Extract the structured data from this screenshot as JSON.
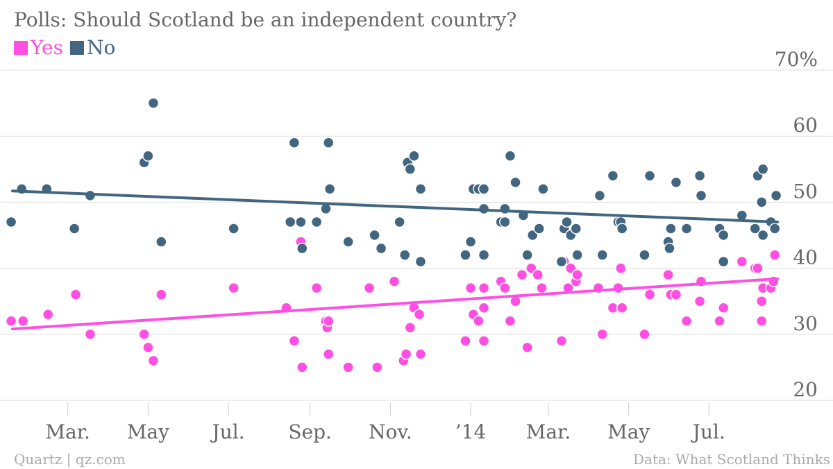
{
  "chart_data": {
    "type": "scatter",
    "title": "Polls: Should Scotland be an independent country?",
    "y_unit_label": "70%",
    "ylim": [
      20,
      70
    ],
    "y_ticks": [
      20,
      30,
      40,
      50,
      60
    ],
    "x_range": [
      "2013-01-18",
      "2014-08-22"
    ],
    "x_ticks": [
      {
        "date": "2013-03-01",
        "label": "Mar."
      },
      {
        "date": "2013-05-01",
        "label": "May"
      },
      {
        "date": "2013-07-01",
        "label": "Jul."
      },
      {
        "date": "2013-09-01",
        "label": "Sep."
      },
      {
        "date": "2013-11-01",
        "label": "Nov."
      },
      {
        "date": "2014-01-01",
        "label": "’14"
      },
      {
        "date": "2014-03-01",
        "label": "Mar."
      },
      {
        "date": "2014-05-01",
        "label": "May"
      },
      {
        "date": "2014-07-01",
        "label": "Jul."
      }
    ],
    "grid": true,
    "legend_position": "top-left",
    "series": [
      {
        "name": "Yes",
        "color": "#ff4fe3",
        "trend": [
          [
            "2013-01-18",
            30.8
          ],
          [
            "2014-08-22",
            38.4
          ]
        ],
        "points": [
          [
            "2013-01-17",
            32
          ],
          [
            "2013-01-26",
            32
          ],
          [
            "2013-02-14",
            33
          ],
          [
            "2013-03-07",
            36
          ],
          [
            "2013-03-18",
            30
          ],
          [
            "2013-04-28",
            30
          ],
          [
            "2013-05-01",
            28
          ],
          [
            "2013-05-05",
            26
          ],
          [
            "2013-05-11",
            36
          ],
          [
            "2013-07-05",
            37
          ],
          [
            "2013-08-14",
            34
          ],
          [
            "2013-08-20",
            29
          ],
          [
            "2013-08-26",
            25
          ],
          [
            "2013-08-25",
            44
          ],
          [
            "2013-09-06",
            37
          ],
          [
            "2013-09-13",
            32
          ],
          [
            "2013-09-14",
            31
          ],
          [
            "2013-09-15",
            32
          ],
          [
            "2013-09-15",
            27
          ],
          [
            "2013-09-30",
            25
          ],
          [
            "2013-10-16",
            37
          ],
          [
            "2013-10-22",
            25
          ],
          [
            "2013-11-04",
            38
          ],
          [
            "2013-11-11",
            26
          ],
          [
            "2013-11-13",
            27
          ],
          [
            "2013-11-16",
            31
          ],
          [
            "2013-11-19",
            34
          ],
          [
            "2013-11-23",
            33
          ],
          [
            "2013-11-24",
            27
          ],
          [
            "2013-12-28",
            29
          ],
          [
            "2014-01-01",
            37
          ],
          [
            "2014-01-03",
            33
          ],
          [
            "2014-01-07",
            32
          ],
          [
            "2014-01-11",
            34
          ],
          [
            "2014-01-11",
            29
          ],
          [
            "2014-01-11",
            37
          ],
          [
            "2014-01-24",
            38
          ],
          [
            "2014-01-27",
            37
          ],
          [
            "2014-01-31",
            32
          ],
          [
            "2014-02-04",
            35
          ],
          [
            "2014-02-09",
            39
          ],
          [
            "2014-02-13",
            28
          ],
          [
            "2014-02-16",
            40
          ],
          [
            "2014-02-21",
            39
          ],
          [
            "2014-02-24",
            37
          ],
          [
            "2014-03-11",
            29
          ],
          [
            "2014-03-13",
            41
          ],
          [
            "2014-03-16",
            37
          ],
          [
            "2014-03-18",
            40
          ],
          [
            "2014-03-22",
            38
          ],
          [
            "2014-03-23",
            39
          ],
          [
            "2014-04-08",
            37
          ],
          [
            "2014-04-11",
            30
          ],
          [
            "2014-04-19",
            34
          ],
          [
            "2014-04-23",
            37
          ],
          [
            "2014-04-25",
            40
          ],
          [
            "2014-04-26",
            34
          ],
          [
            "2014-05-13",
            30
          ],
          [
            "2014-05-17",
            36
          ],
          [
            "2014-05-31",
            39
          ],
          [
            "2014-06-02",
            36
          ],
          [
            "2014-06-06",
            36
          ],
          [
            "2014-06-14",
            32
          ],
          [
            "2014-06-25",
            38
          ],
          [
            "2014-06-24",
            35
          ],
          [
            "2014-07-09",
            32
          ],
          [
            "2014-07-12",
            34
          ],
          [
            "2014-07-26",
            41
          ],
          [
            "2014-08-05",
            40
          ],
          [
            "2014-08-07",
            40
          ],
          [
            "2014-08-11",
            37
          ],
          [
            "2014-08-10",
            35
          ],
          [
            "2014-08-10",
            32
          ],
          [
            "2014-08-17",
            37
          ],
          [
            "2014-08-19",
            38
          ],
          [
            "2014-08-20",
            42
          ]
        ]
      },
      {
        "name": "No",
        "color": "#426580",
        "trend": [
          [
            "2013-01-18",
            51.7
          ],
          [
            "2014-08-22",
            47.0
          ]
        ],
        "points": [
          [
            "2013-01-17",
            47
          ],
          [
            "2013-01-25",
            52
          ],
          [
            "2013-02-13",
            52
          ],
          [
            "2013-03-06",
            46
          ],
          [
            "2013-03-18",
            51
          ],
          [
            "2013-04-28",
            56
          ],
          [
            "2013-05-01",
            57
          ],
          [
            "2013-05-05",
            65
          ],
          [
            "2013-05-11",
            44
          ],
          [
            "2013-07-05",
            46
          ],
          [
            "2013-08-17",
            47
          ],
          [
            "2013-08-20",
            59
          ],
          [
            "2013-08-25",
            47
          ],
          [
            "2013-08-26",
            43
          ],
          [
            "2013-09-06",
            47
          ],
          [
            "2013-09-13",
            49
          ],
          [
            "2013-09-15",
            59
          ],
          [
            "2013-09-16",
            52
          ],
          [
            "2013-09-30",
            44
          ],
          [
            "2013-10-20",
            45
          ],
          [
            "2013-10-25",
            43
          ],
          [
            "2013-11-08",
            47
          ],
          [
            "2013-11-12",
            42
          ],
          [
            "2013-11-14",
            56
          ],
          [
            "2013-11-16",
            55
          ],
          [
            "2013-11-19",
            57
          ],
          [
            "2013-11-24",
            52
          ],
          [
            "2013-11-24",
            41
          ],
          [
            "2013-12-28",
            42
          ],
          [
            "2014-01-01",
            44
          ],
          [
            "2014-01-03",
            52
          ],
          [
            "2014-01-07",
            52
          ],
          [
            "2014-01-11",
            52
          ],
          [
            "2014-01-11",
            49
          ],
          [
            "2014-01-11",
            42
          ],
          [
            "2014-01-24",
            47
          ],
          [
            "2014-01-27",
            47
          ],
          [
            "2014-01-27",
            49
          ],
          [
            "2014-01-31",
            57
          ],
          [
            "2014-02-04",
            53
          ],
          [
            "2014-02-10",
            48
          ],
          [
            "2014-02-13",
            42
          ],
          [
            "2014-02-17",
            45
          ],
          [
            "2014-02-22",
            46
          ],
          [
            "2014-02-25",
            52
          ],
          [
            "2014-03-11",
            41
          ],
          [
            "2014-03-13",
            46
          ],
          [
            "2014-03-15",
            47
          ],
          [
            "2014-03-18",
            45
          ],
          [
            "2014-03-22",
            46
          ],
          [
            "2014-03-23",
            42
          ],
          [
            "2014-04-09",
            51
          ],
          [
            "2014-04-11",
            42
          ],
          [
            "2014-04-19",
            54
          ],
          [
            "2014-04-23",
            47
          ],
          [
            "2014-04-25",
            47
          ],
          [
            "2014-04-26",
            46
          ],
          [
            "2014-05-13",
            42
          ],
          [
            "2014-05-17",
            54
          ],
          [
            "2014-05-31",
            44
          ],
          [
            "2014-06-01",
            43
          ],
          [
            "2014-06-02",
            46
          ],
          [
            "2014-06-06",
            53
          ],
          [
            "2014-06-14",
            46
          ],
          [
            "2014-06-24",
            54
          ],
          [
            "2014-06-25",
            51
          ],
          [
            "2014-07-09",
            46
          ],
          [
            "2014-07-12",
            41
          ],
          [
            "2014-07-12",
            45
          ],
          [
            "2014-07-26",
            48
          ],
          [
            "2014-08-05",
            46
          ],
          [
            "2014-08-07",
            54
          ],
          [
            "2014-08-11",
            55
          ],
          [
            "2014-08-10",
            50
          ],
          [
            "2014-08-11",
            45
          ],
          [
            "2014-08-17",
            47
          ],
          [
            "2014-08-20",
            46
          ],
          [
            "2014-08-21",
            51
          ]
        ]
      }
    ]
  },
  "footer": {
    "source": "Quartz | qz.com",
    "credit": "Data: What Scotland Thinks"
  }
}
